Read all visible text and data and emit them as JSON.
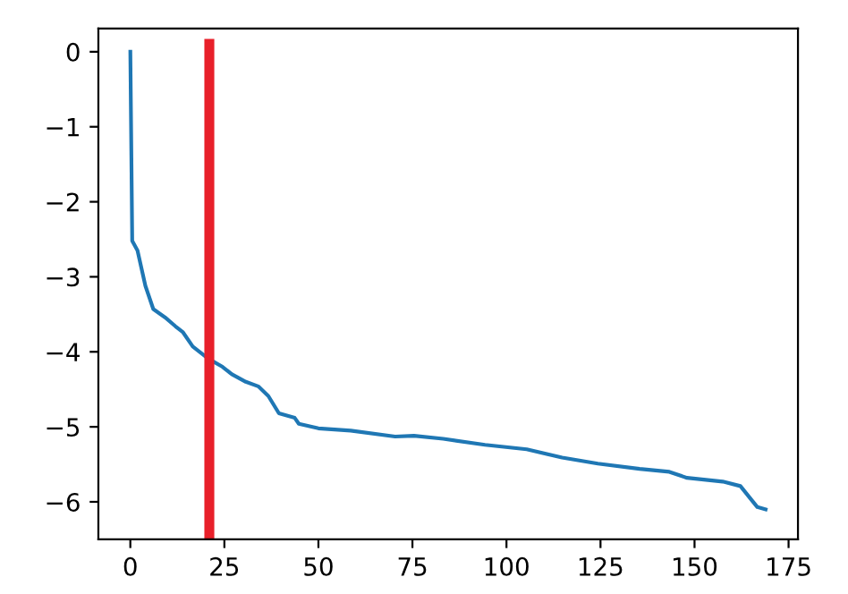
{
  "chart_data": {
    "type": "line",
    "x": [
      0,
      0.5,
      1.9,
      4,
      6.1,
      9.2,
      12,
      14,
      16.6,
      20.7,
      24.5,
      27,
      30.7,
      34,
      36.7,
      39.5,
      43.7,
      44.8,
      50,
      58.6,
      70.4,
      75.4,
      83.2,
      94.3,
      105.4,
      114.8,
      124.3,
      135.4,
      143.3,
      148,
      157.5,
      162.2,
      165.4,
      166.7,
      168.9
    ],
    "series": [
      {
        "color": "#1f77b4",
        "values": [
          0,
          -2.52,
          -2.65,
          -3.12,
          -3.43,
          -3.54,
          -3.66,
          -3.74,
          -3.93,
          -4.09,
          -4.2,
          -4.3,
          -4.4,
          -4.46,
          -4.59,
          -4.82,
          -4.88,
          -4.96,
          -5.02,
          -5.05,
          -5.13,
          -5.12,
          -5.16,
          -5.24,
          -5.3,
          -5.41,
          -5.49,
          -5.56,
          -5.6,
          -5.68,
          -5.73,
          -5.79,
          -5.99,
          -6.07,
          -6.1
        ]
      }
    ],
    "xlim": [
      -8.5,
      177.5
    ],
    "ylim": [
      -6.5,
      0.31
    ],
    "xticks": [
      0,
      25,
      50,
      75,
      100,
      125,
      150,
      175
    ],
    "yticks": [
      -6,
      -5,
      -4,
      -3,
      -2,
      -1,
      0
    ],
    "ref_lines": [
      {
        "axis": "x",
        "value": 21,
        "color": "#e8202a"
      }
    ],
    "grid": false,
    "legend": false
  }
}
